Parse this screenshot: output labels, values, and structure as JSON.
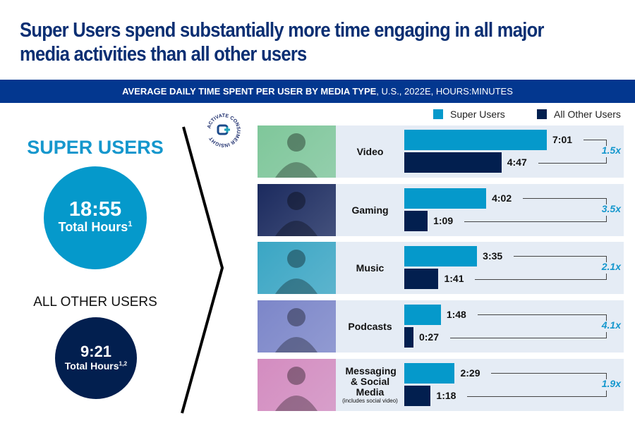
{
  "title": "Super Users spend substantially more time engaging in all major media activities than all other users",
  "banner": {
    "bold": "AVERAGE DAILY TIME SPENT PER USER BY MEDIA TYPE",
    "rest": ", U.S., 2022E, HOURS:MINUTES"
  },
  "super_users": {
    "heading": "SUPER USERS",
    "total": "18:55",
    "total_label": "Total Hours",
    "footnote": "1"
  },
  "all_other_users": {
    "heading": "ALL OTHER USERS",
    "total": "9:21",
    "total_label": "Total Hours",
    "footnote": "1,2"
  },
  "logo": {
    "text": "ACTIVATE CONSUMER INSIGHT",
    "icon": "activate-logo-icon"
  },
  "colors": {
    "super": "#0599cb",
    "other": "#021f4f",
    "accent": "#1597cd",
    "banner": "#03378f",
    "title": "#0b2f73",
    "row_bg": "#e5ecf5"
  },
  "chart_data": {
    "type": "bar",
    "orientation": "horizontal",
    "title": "AVERAGE DAILY TIME SPENT PER USER BY MEDIA TYPE, U.S., 2022E, HOURS:MINUTES",
    "legend": [
      "Super Users",
      "All Other Users"
    ],
    "legend_position": "top-right",
    "categories": [
      "Video",
      "Gaming",
      "Music",
      "Podcasts",
      "Messaging & Social Media"
    ],
    "category_notes": [
      "",
      "",
      "",
      "",
      "(includes social video)"
    ],
    "series": [
      {
        "name": "Super Users",
        "labels": [
          "7:01",
          "4:02",
          "3:35",
          "1:48",
          "2:29"
        ],
        "values_minutes": [
          421,
          242,
          215,
          108,
          149
        ]
      },
      {
        "name": "All Other Users",
        "labels": [
          "4:47",
          "1:09",
          "1:41",
          "0:27",
          "1:18"
        ],
        "values_minutes": [
          287,
          69,
          101,
          27,
          78
        ]
      }
    ],
    "multipliers": [
      "1.5x",
      "3.5x",
      "2.1x",
      "4.1x",
      "1.9x"
    ],
    "photo_tints": [
      "#7fc79a",
      "#1b2a5e",
      "#3aa6c4",
      "#7c86c9",
      "#d48cc0"
    ],
    "xlim_minutes": [
      0,
      421
    ],
    "grid": false
  }
}
